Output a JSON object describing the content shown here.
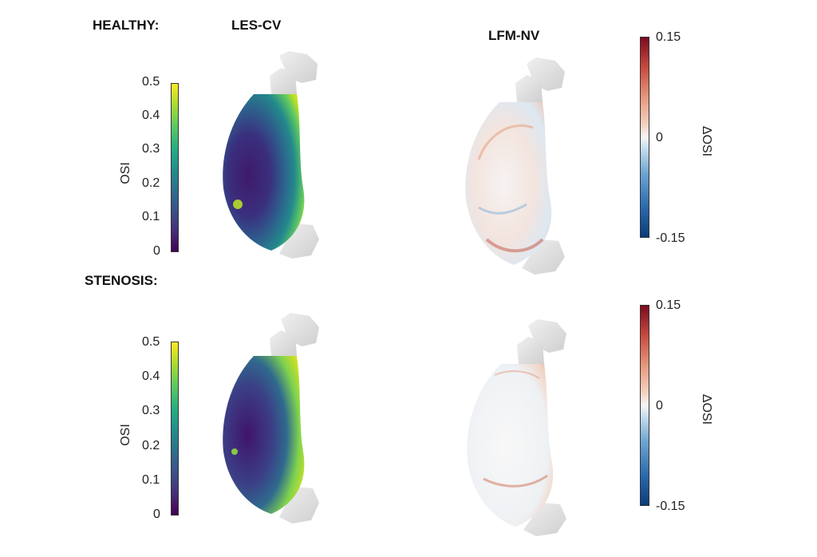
{
  "row_labels": {
    "healthy": "HEALTHY:",
    "stenosis": "STENOSIS:"
  },
  "column_headers": {
    "les": "LES-CV",
    "lfm": "LFM-NV"
  },
  "osi_colorbar": {
    "title": "OSI",
    "ticks": [
      "0.5",
      "0.4",
      "0.3",
      "0.2",
      "0.1",
      "0"
    ],
    "colormap": "viridis",
    "range": [
      0,
      0.5
    ]
  },
  "delta_colorbar": {
    "title": "ΔOSI",
    "ticks": [
      "0.15",
      "0",
      "-0.15"
    ],
    "colormap": "blue-white-red",
    "range": [
      -0.15,
      0.15
    ]
  },
  "colors": {
    "vessel_gray": "#d9d9d9",
    "text": "#111111"
  }
}
